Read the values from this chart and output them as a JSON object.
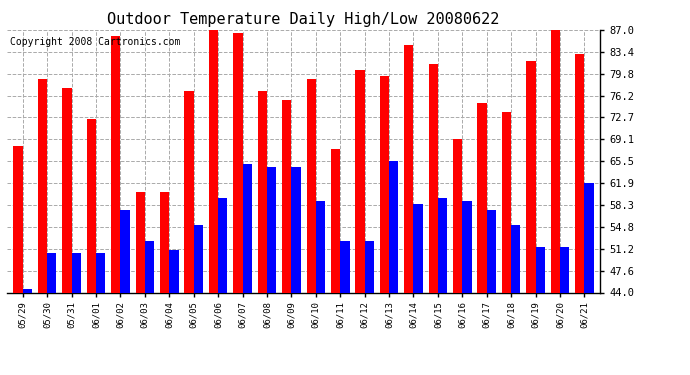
{
  "title": "Outdoor Temperature Daily High/Low 20080622",
  "copyright": "Copyright 2008 Cartronics.com",
  "dates": [
    "05/29",
    "05/30",
    "05/31",
    "06/01",
    "06/02",
    "06/03",
    "06/04",
    "06/05",
    "06/06",
    "06/07",
    "06/08",
    "06/09",
    "06/10",
    "06/11",
    "06/12",
    "06/13",
    "06/14",
    "06/15",
    "06/16",
    "06/17",
    "06/18",
    "06/19",
    "06/20",
    "06/21"
  ],
  "highs": [
    68.0,
    79.0,
    77.5,
    72.5,
    86.0,
    60.5,
    60.5,
    77.0,
    87.5,
    86.5,
    77.0,
    75.5,
    79.0,
    67.5,
    80.5,
    79.5,
    84.5,
    81.5,
    69.1,
    75.0,
    73.5,
    82.0,
    87.0,
    83.0
  ],
  "lows": [
    44.5,
    50.5,
    50.5,
    50.5,
    57.5,
    52.5,
    51.0,
    55.0,
    59.5,
    65.0,
    64.5,
    64.5,
    59.0,
    52.5,
    52.5,
    65.5,
    58.5,
    59.5,
    59.0,
    57.5,
    55.0,
    51.5,
    51.5,
    62.0
  ],
  "high_color": "#ff0000",
  "low_color": "#0000ff",
  "bg_color": "#ffffff",
  "plot_bg_color": "#ffffff",
  "grid_color": "#aaaaaa",
  "yticks": [
    44.0,
    47.6,
    51.2,
    54.8,
    58.3,
    61.9,
    65.5,
    69.1,
    72.7,
    76.2,
    79.8,
    83.4,
    87.0
  ],
  "ymin": 44.0,
  "ymax": 87.0,
  "bar_width": 0.38,
  "title_fontsize": 11,
  "copyright_fontsize": 7
}
